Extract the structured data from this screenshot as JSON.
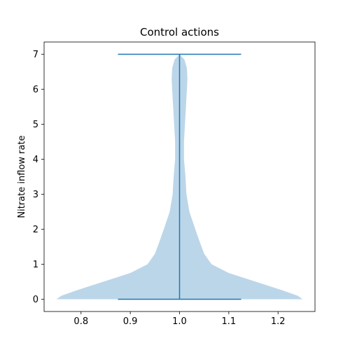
{
  "chart_data": {
    "type": "violin",
    "title": "Control actions",
    "xlabel": "",
    "ylabel": "Nitrate inflow rate",
    "xlim": [
      0.725,
      1.275
    ],
    "ylim": [
      -0.35,
      7.35
    ],
    "xticks": [
      0.8,
      0.9,
      1.0,
      1.1,
      1.2
    ],
    "xtick_labels": [
      "0.8",
      "0.9",
      "1.0",
      "1.1",
      "1.2"
    ],
    "yticks": [
      0,
      1,
      2,
      3,
      4,
      5,
      6,
      7
    ],
    "ytick_labels": [
      "0",
      "1",
      "2",
      "3",
      "4",
      "5",
      "6",
      "7"
    ],
    "grid": false,
    "legend": "none",
    "violin": {
      "position": 1.0,
      "min": 0,
      "max": 7,
      "cap_halfwidth": 0.125,
      "max_halfwidth": 0.25,
      "body_color": "#bcd6e9",
      "line_color": "#1f77b4",
      "density_profile": [
        {
          "y": 0.0,
          "half_width": 0.25
        },
        {
          "y": 0.1,
          "half_width": 0.24
        },
        {
          "y": 0.25,
          "half_width": 0.21
        },
        {
          "y": 0.5,
          "half_width": 0.155
        },
        {
          "y": 0.75,
          "half_width": 0.1
        },
        {
          "y": 1.0,
          "half_width": 0.065
        },
        {
          "y": 1.3,
          "half_width": 0.05
        },
        {
          "y": 1.6,
          "half_width": 0.042
        },
        {
          "y": 2.0,
          "half_width": 0.032
        },
        {
          "y": 2.5,
          "half_width": 0.02
        },
        {
          "y": 3.0,
          "half_width": 0.014
        },
        {
          "y": 3.5,
          "half_width": 0.012
        },
        {
          "y": 4.0,
          "half_width": 0.009
        },
        {
          "y": 4.5,
          "half_width": 0.009
        },
        {
          "y": 5.0,
          "half_width": 0.011
        },
        {
          "y": 5.5,
          "half_width": 0.013
        },
        {
          "y": 6.0,
          "half_width": 0.015
        },
        {
          "y": 6.3,
          "half_width": 0.016
        },
        {
          "y": 6.6,
          "half_width": 0.015
        },
        {
          "y": 6.85,
          "half_width": 0.01
        },
        {
          "y": 7.0,
          "half_width": 0.0
        }
      ]
    }
  }
}
